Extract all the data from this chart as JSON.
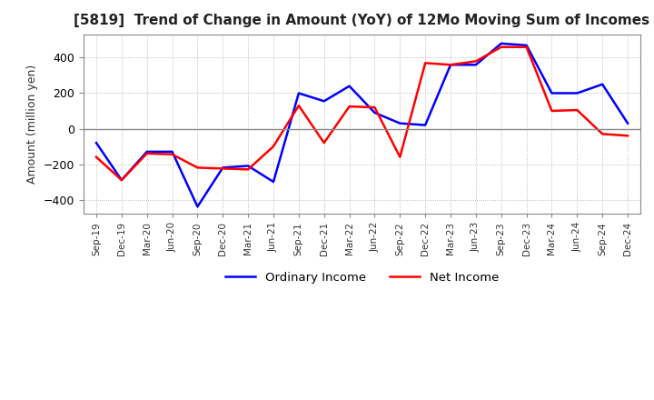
{
  "title": "[5819]  Trend of Change in Amount (YoY) of 12Mo Moving Sum of Incomes",
  "ylabel": "Amount (million yen)",
  "ylim": [
    -480,
    530
  ],
  "yticks": [
    -400,
    -200,
    0,
    200,
    400
  ],
  "x_labels": [
    "Sep-19",
    "Dec-19",
    "Mar-20",
    "Jun-20",
    "Sep-20",
    "Dec-20",
    "Mar-21",
    "Jun-21",
    "Sep-21",
    "Dec-21",
    "Mar-22",
    "Jun-22",
    "Sep-22",
    "Dec-22",
    "Mar-23",
    "Jun-23",
    "Sep-23",
    "Dec-23",
    "Mar-24",
    "Jun-24",
    "Sep-24",
    "Dec-24"
  ],
  "ordinary_income": [
    -80,
    -290,
    -130,
    -130,
    -440,
    -220,
    -210,
    -300,
    200,
    155,
    240,
    90,
    30,
    20,
    360,
    360,
    480,
    470,
    200,
    200,
    250,
    30
  ],
  "net_income": [
    -160,
    -290,
    -140,
    -145,
    -220,
    -225,
    -230,
    -100,
    130,
    -80,
    125,
    120,
    -160,
    370,
    360,
    380,
    460,
    460,
    100,
    105,
    -30,
    -40
  ],
  "ordinary_color": "#0000FF",
  "net_color": "#FF0000",
  "legend_labels": [
    "Ordinary Income",
    "Net Income"
  ],
  "background_color": "#FFFFFF",
  "grid_color": "#AAAAAA",
  "frame_color": "#888888"
}
